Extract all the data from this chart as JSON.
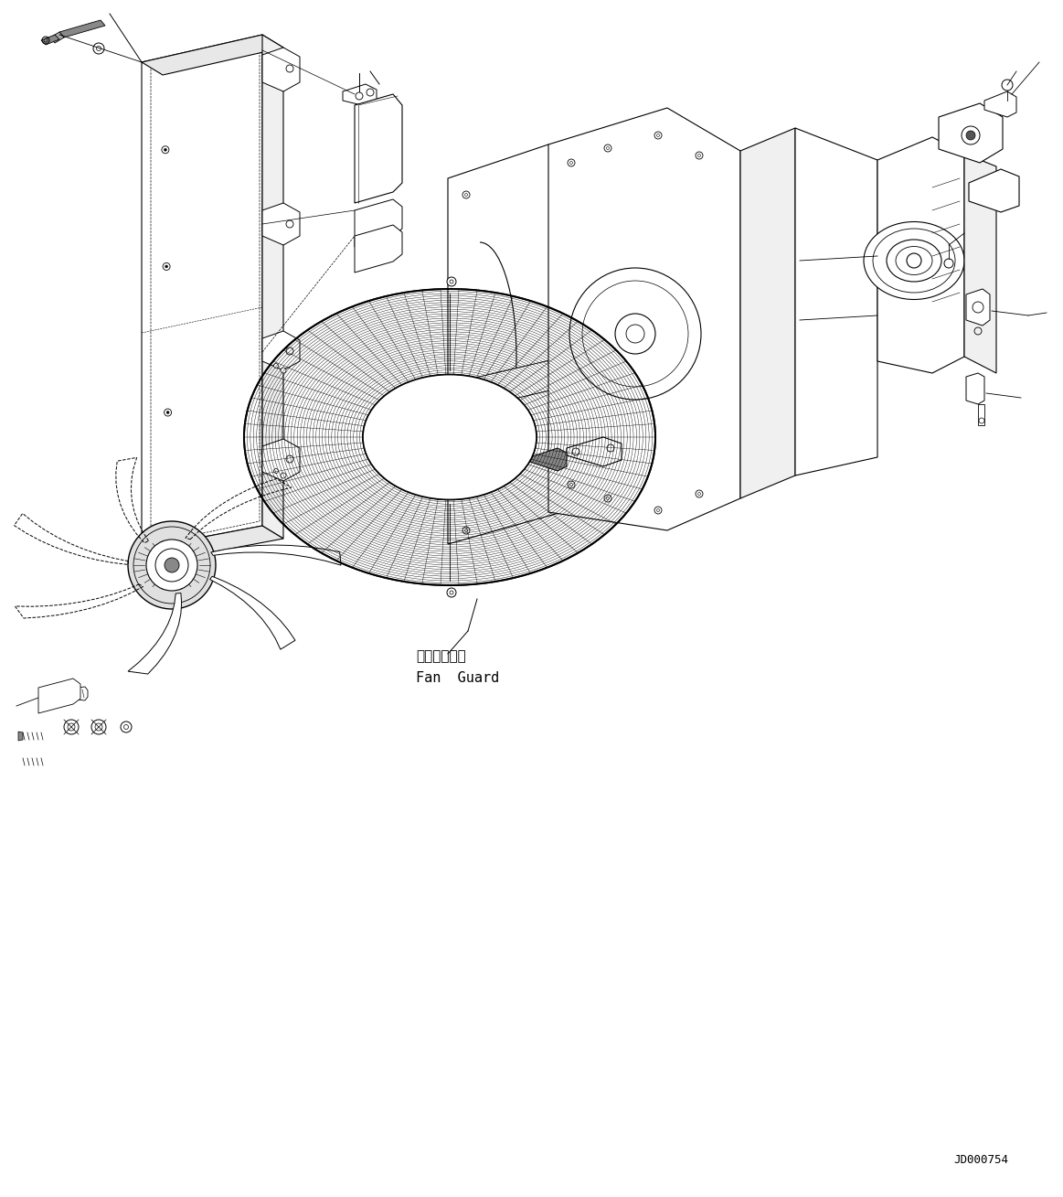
{
  "bg_color": "#ffffff",
  "line_color": "#000000",
  "lw": 0.8,
  "fig_width": 11.63,
  "fig_height": 13.09,
  "dpi": 100,
  "label_jp": "ファンガード",
  "label_en": "Fan  Guard",
  "doc_id": "JD000754"
}
